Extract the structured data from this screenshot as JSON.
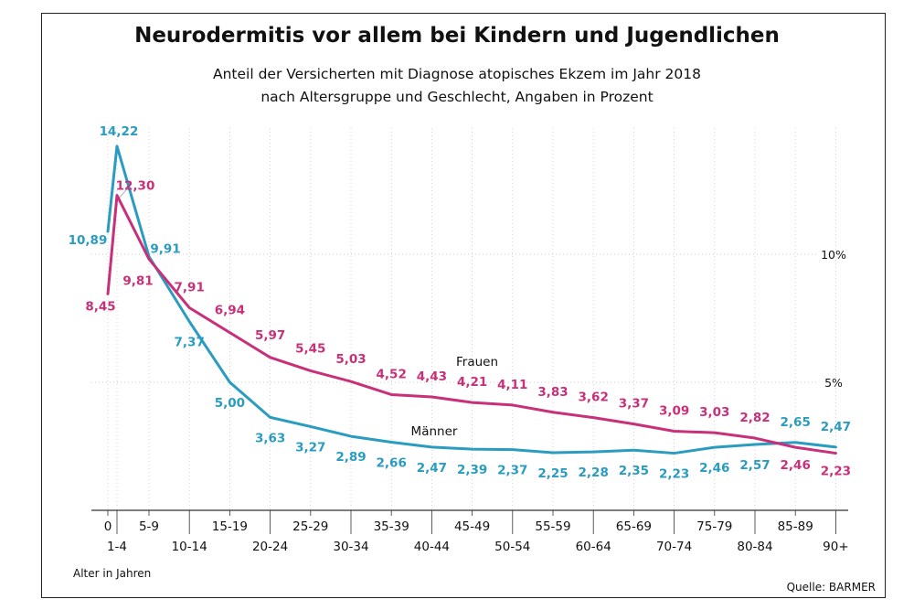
{
  "title": "Neurodermitis vor allem bei Kindern und Jugendlichen",
  "subtitle_line1": "Anteil der Versicherten mit Diagnose atopisches Ekzem im Jahr 2018",
  "subtitle_line2": "nach Altersgruppe und Geschlecht, Angaben in Prozent",
  "source": "Quelle: BARMER",
  "colors": {
    "frauen": "#c8307a",
    "maenner": "#2a9cc0",
    "grid": "#bbbbbb"
  },
  "chart_data": {
    "type": "line",
    "title": "Neurodermitis vor allem bei Kindern und Jugendlichen",
    "xlabel": "Alter in Jahren",
    "ylabel": "",
    "ylim": [
      0,
      12.8
    ],
    "yticks": [
      "10%",
      "5%"
    ],
    "grid": "dotted horizontal and vertical",
    "categories": [
      "0",
      "1-4",
      "5-9",
      "10-14",
      "15-19",
      "20-24",
      "25-29",
      "30-34",
      "35-39",
      "40-44",
      "45-49",
      "50-54",
      "55-59",
      "60-64",
      "65-69",
      "70-74",
      "75-79",
      "80-84",
      "85-89",
      "90+"
    ],
    "series": [
      {
        "name": "Frauen",
        "values": [
          8.45,
          12.3,
          9.81,
          7.91,
          6.94,
          5.97,
          5.45,
          5.03,
          4.52,
          4.43,
          4.21,
          4.11,
          3.83,
          3.62,
          3.37,
          3.09,
          3.03,
          2.82,
          2.46,
          2.23
        ],
        "labels": [
          "8,45",
          "12,30",
          "9,81",
          "7,91",
          "6,94",
          "5,97",
          "5,45",
          "5,03",
          "4,52",
          "4,43",
          "4,21",
          "4,11",
          "3,83",
          "3,62",
          "3,37",
          "3,09",
          "3,03",
          "2,82",
          "2,46",
          "2,23"
        ]
      },
      {
        "name": "Männer",
        "values": [
          10.89,
          14.22,
          9.91,
          7.37,
          5.0,
          3.63,
          3.27,
          2.89,
          2.66,
          2.47,
          2.39,
          2.37,
          2.25,
          2.28,
          2.35,
          2.23,
          2.46,
          2.57,
          2.65,
          2.47
        ],
        "labels": [
          "10,89",
          "14,22",
          "9,91",
          "7,37",
          "5,00",
          "3,63",
          "3,27",
          "2,89",
          "2,66",
          "2,47",
          "2,39",
          "2,37",
          "2,25",
          "2,28",
          "2,35",
          "2,23",
          "2,46",
          "2,57",
          "2,65",
          "2,47"
        ]
      }
    ]
  }
}
